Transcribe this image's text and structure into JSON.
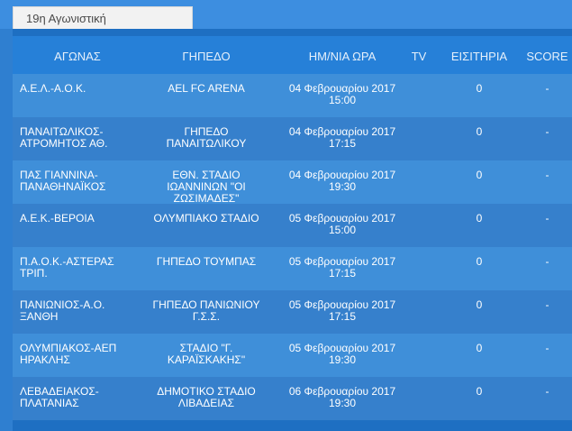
{
  "tab": {
    "label": "19η Αγωνιστική"
  },
  "headers": {
    "match": "ΑΓΩΝΑΣ",
    "stadium": "ΓΗΠΕΔΟ",
    "datetime": "ΗΜ/ΝΙΑ ΩΡΑ",
    "tv": "TV",
    "tickets": "ΕΙΣΙΤΗΡΙΑ",
    "score": "SCORE"
  },
  "rows": [
    {
      "match": "Α.Ε.Λ.-Α.Ο.Κ.",
      "stadium": "AEL FC ARENA",
      "datetime": "04 Φεβρουαρίου 2017\n15:00",
      "tv": "",
      "tickets": "0",
      "score": "-"
    },
    {
      "match": "ΠΑΝΑΙΤΩΛΙΚΟΣ-\nΑΤΡΟΜΗΤΟΣ ΑΘ.",
      "stadium": "ΓΗΠΕΔΟ\nΠΑΝΑΙΤΩΛΙΚΟΥ",
      "datetime": "04 Φεβρουαρίου 2017\n17:15",
      "tv": "",
      "tickets": "0",
      "score": "-"
    },
    {
      "match": "ΠΑΣ ΓΙΑΝΝΙΝΑ-\nΠΑΝΑΘΗΝΑΪΚΟΣ",
      "stadium": "ΕΘΝ. ΣΤΑΔΙΟ\nΙΩΑΝΝΙΝΩΝ \"ΟΙ\nΖΩΣΙΜΑΔΕΣ\"",
      "datetime": "04 Φεβρουαρίου 2017\n19:30",
      "tv": "",
      "tickets": "0",
      "score": "-"
    },
    {
      "match": "Α.Ε.Κ.-ΒΕΡΟΙΑ",
      "stadium": "ΟΛΥΜΠΙΑΚΟ ΣΤΑΔΙΟ",
      "datetime": "05 Φεβρουαρίου 2017\n15:00",
      "tv": "",
      "tickets": "0",
      "score": "-"
    },
    {
      "match": "Π.Α.Ο.Κ.-ΑΣΤΕΡΑΣ\nΤΡΙΠ.",
      "stadium": "ΓΗΠΕΔΟ ΤΟΥΜΠΑΣ",
      "datetime": "05 Φεβρουαρίου 2017\n17:15",
      "tv": "",
      "tickets": "0",
      "score": "-"
    },
    {
      "match": "ΠΑΝΙΩΝΙΟΣ-Α.Ο.\nΞΑΝΘΗ",
      "stadium": "ΓΗΠΕΔΟ ΠΑΝΙΩΝΙΟΥ\nΓ.Σ.Σ.",
      "datetime": "05 Φεβρουαρίου 2017\n17:15",
      "tv": "",
      "tickets": "0",
      "score": "-"
    },
    {
      "match": "ΟΛΥΜΠΙΑΚΟΣ-ΑΕΠ\nΗΡΑΚΛΗΣ",
      "stadium": "ΣΤΑΔΙΟ \"Γ.\nΚΑΡΑΪΣΚΑΚΗΣ\"",
      "datetime": "05 Φεβρουαρίου 2017\n19:30",
      "tv": "",
      "tickets": "0",
      "score": "-"
    },
    {
      "match": "ΛΕΒΑΔΕΙΑΚΟΣ-\nΠΛΑΤΑΝΙΑΣ",
      "stadium": "ΔΗΜΟΤΙΚΟ ΣΤΑΔΙΟ\nΛΙΒΑΔΕΙΑΣ",
      "datetime": "06 Φεβρουαρίου 2017\n19:30",
      "tv": "",
      "tickets": "0",
      "score": "-"
    }
  ]
}
